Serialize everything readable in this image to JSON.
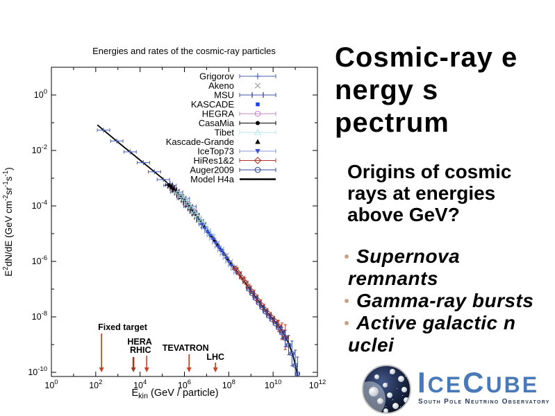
{
  "slide": {
    "title_lines": [
      "Cosmic-ray e",
      "nergy s",
      "pectrum"
    ],
    "question_lines": [
      "Origins of cosmic",
      "rays at energies",
      "above GeV?"
    ],
    "bullets": [
      {
        "lines": [
          "Supernova",
          "remnants"
        ]
      },
      {
        "lines": [
          "Gamma-ray bursts"
        ]
      },
      {
        "lines": [
          "Active galactic n",
          "uclei"
        ]
      }
    ],
    "bullet_dot_color": "#cba184"
  },
  "logo": {
    "part1": "I",
    "part2": "CE",
    "part3": "C",
    "part4": "UBE",
    "subtitle": "South Pole Neutrino Observatory",
    "name_color": "#4a79b8",
    "subtitle_color": "#2a3a5c"
  },
  "chart_data": {
    "type": "scatter",
    "title": "Energies and rates of the cosmic-ray particles",
    "xlabel": "E_kin (GeV / particle)",
    "ylabel": "E^2 dN/dE (GeV cm^-2 sr^-1 s^-1)",
    "xlabel_parts": [
      {
        "t": "E"
      },
      {
        "t": "kin",
        "sub": true
      },
      {
        "t": "  (GeV / particle)"
      }
    ],
    "ylabel_parts": [
      {
        "t": "E"
      },
      {
        "t": "2",
        "sup": true
      },
      {
        "t": "dN/dE  (GeV cm"
      },
      {
        "t": "-2",
        "sup": true
      },
      {
        "t": "sr"
      },
      {
        "t": "-1",
        "sup": true
      },
      {
        "t": "s"
      },
      {
        "t": "-1",
        "sup": true
      },
      {
        "t": ")"
      }
    ],
    "x_axis": {
      "scale": "log10",
      "min_exp": 0,
      "max_exp": 12,
      "labeled_exps": [
        0,
        2,
        4,
        6,
        8,
        10,
        12
      ]
    },
    "y_axis": {
      "scale": "log10",
      "top_exp": 1,
      "min_exp": -10.15,
      "labeled_exps": [
        0,
        -2,
        -4,
        -6,
        -8,
        -10
      ]
    },
    "model_line": {
      "name": "Model H4a",
      "color": "#000000",
      "legend": "line",
      "points": [
        [
          2.07,
          -1.08
        ],
        [
          3,
          -1.7
        ],
        [
          4,
          -2.35
        ],
        [
          5,
          -3
        ],
        [
          5.6,
          -3.45
        ],
        [
          6,
          -3.8
        ],
        [
          6.4,
          -4.2
        ],
        [
          6.8,
          -4.62
        ],
        [
          7.2,
          -5.05
        ],
        [
          7.6,
          -5.5
        ],
        [
          8,
          -5.95
        ],
        [
          8.5,
          -6.5
        ],
        [
          9,
          -7.05
        ],
        [
          9.5,
          -7.6
        ],
        [
          9.8,
          -7.9
        ],
        [
          10.1,
          -8.18
        ],
        [
          10.4,
          -8.5
        ],
        [
          10.7,
          -8.95
        ],
        [
          10.9,
          -9.4
        ],
        [
          11.05,
          -9.9
        ],
        [
          11.15,
          -10.3
        ]
      ]
    },
    "series": [
      {
        "name": "Grigorov",
        "color": "#4a5fb0",
        "marker": "plus",
        "legend": "errbar",
        "xerr": 0.28,
        "points": [
          [
            2.35,
            -1.27
          ],
          [
            2.95,
            -1.66
          ],
          [
            3.55,
            -2.05
          ],
          [
            4.15,
            -2.44
          ],
          [
            4.65,
            -2.77
          ],
          [
            5.05,
            -3.05
          ],
          [
            5.35,
            -3.26
          ],
          [
            5.65,
            -3.5
          ],
          [
            5.95,
            -3.73
          ],
          [
            6.25,
            -4.02
          ]
        ]
      },
      {
        "name": "Akeno",
        "color": "#9a9a9a",
        "marker": "x",
        "legend": "marker",
        "xerr": 0,
        "points": [
          [
            6.3,
            -4.05
          ],
          [
            6.5,
            -4.26
          ],
          [
            6.7,
            -4.47
          ],
          [
            6.9,
            -4.68
          ],
          [
            7.1,
            -4.89
          ],
          [
            7.3,
            -5.11
          ],
          [
            7.5,
            -5.34
          ],
          [
            7.7,
            -5.56
          ],
          [
            7.9,
            -5.78
          ],
          [
            8.1,
            -6.0
          ],
          [
            8.3,
            -6.21
          ],
          [
            8.5,
            -6.43
          ],
          [
            8.7,
            -6.65
          ],
          [
            8.9,
            -6.87
          ],
          [
            9.1,
            -7.09
          ]
        ]
      },
      {
        "name": "MSU",
        "color": "#3f51a8",
        "marker": "vbar",
        "legend": "errbar",
        "xerr": 0.12,
        "points": [
          [
            5.35,
            -3.2
          ],
          [
            5.5,
            -3.33
          ],
          [
            5.65,
            -3.45
          ],
          [
            5.8,
            -3.58
          ],
          [
            5.95,
            -3.69
          ],
          [
            6.1,
            -3.86
          ],
          [
            6.25,
            -3.99
          ],
          [
            6.4,
            -4.17
          ]
        ]
      },
      {
        "name": "KASCADE",
        "color": "#2040e8",
        "marker": "square",
        "legend": "marker",
        "xerr": 0,
        "points": [
          [
            5.9,
            -3.72
          ],
          [
            6.0,
            -3.81
          ],
          [
            6.1,
            -3.91
          ],
          [
            6.2,
            -4.01
          ],
          [
            6.3,
            -4.11
          ],
          [
            6.4,
            -4.21
          ],
          [
            6.5,
            -4.32
          ],
          [
            6.6,
            -4.42
          ],
          [
            6.7,
            -4.53
          ],
          [
            6.8,
            -4.63
          ],
          [
            6.9,
            -4.74
          ],
          [
            7.0,
            -4.85
          ],
          [
            7.1,
            -4.95
          ],
          [
            7.2,
            -5.06
          ],
          [
            7.3,
            -5.17
          ],
          [
            7.4,
            -5.29
          ],
          [
            7.5,
            -5.4
          ],
          [
            7.6,
            -5.51
          ],
          [
            7.7,
            -5.62
          ]
        ]
      },
      {
        "name": "HEGRA",
        "color": "#c488c4",
        "marker": "circle-open",
        "legend": "errbar",
        "xerr": 0.18,
        "points": [
          [
            5.45,
            -3.33
          ],
          [
            5.6,
            -3.44
          ],
          [
            5.75,
            -3.57
          ],
          [
            5.9,
            -3.7
          ],
          [
            6.05,
            -3.85
          ],
          [
            6.2,
            -3.99
          ],
          [
            6.35,
            -4.14
          ],
          [
            6.5,
            -4.3
          ]
        ]
      },
      {
        "name": "CasaMia",
        "color": "#000000",
        "marker": "circle-filled",
        "legend": "errbar",
        "xerr": 0.15,
        "points": [
          [
            5.3,
            -3.24
          ],
          [
            5.4,
            -3.31
          ],
          [
            5.5,
            -3.39
          ],
          [
            5.6,
            -3.47
          ],
          [
            5.7,
            -3.55
          ],
          [
            5.8,
            -3.64
          ],
          [
            5.9,
            -3.73
          ],
          [
            6.0,
            -3.82
          ],
          [
            6.1,
            -3.92
          ],
          [
            6.2,
            -4.02
          ],
          [
            6.3,
            -4.12
          ],
          [
            6.4,
            -4.22
          ],
          [
            6.5,
            -4.32
          ],
          [
            6.6,
            -4.43
          ],
          [
            6.7,
            -4.54
          ],
          [
            6.8,
            -4.65
          ],
          [
            6.9,
            -4.75
          ]
        ]
      },
      {
        "name": "Tibet",
        "color": "#b8e8f2",
        "marker": "tri-open",
        "legend": "errbar",
        "xerr": 0.15,
        "points": [
          [
            5.7,
            -3.5
          ],
          [
            5.85,
            -3.62
          ],
          [
            6.0,
            -3.75
          ],
          [
            6.15,
            -3.89
          ],
          [
            6.3,
            -4.04
          ],
          [
            6.45,
            -4.22
          ],
          [
            6.6,
            -4.37
          ],
          [
            6.75,
            -4.53
          ],
          [
            6.9,
            -4.7
          ],
          [
            7.05,
            -4.86
          ],
          [
            7.2,
            -5.02
          ]
        ]
      },
      {
        "name": "Kascade-Grande",
        "color": "#000000",
        "marker": "tri-filled",
        "legend": "marker",
        "xerr": 0,
        "points": [
          [
            6.9,
            -4.75
          ],
          [
            7.05,
            -4.91
          ],
          [
            7.2,
            -5.07
          ],
          [
            7.35,
            -5.23
          ],
          [
            7.5,
            -5.4
          ],
          [
            7.65,
            -5.57
          ],
          [
            7.8,
            -5.73
          ],
          [
            7.95,
            -5.9
          ],
          [
            8.1,
            -6.07
          ]
        ]
      },
      {
        "name": "IceTop73",
        "color": "#3c55cc",
        "err_color": "#8a97d8",
        "marker": "tri-down",
        "legend": "errbar",
        "xerr": 0.14,
        "points": [
          [
            6.8,
            -4.68
          ],
          [
            6.92,
            -4.81
          ],
          [
            7.04,
            -4.94
          ],
          [
            7.16,
            -5.07
          ],
          [
            7.28,
            -5.2
          ],
          [
            7.4,
            -5.34
          ],
          [
            7.52,
            -5.48
          ],
          [
            7.64,
            -5.61
          ],
          [
            7.76,
            -5.75
          ],
          [
            7.88,
            -5.89
          ],
          [
            8.0,
            -6.02
          ],
          [
            8.12,
            -6.15
          ],
          [
            8.24,
            -6.28
          ],
          [
            8.36,
            -6.42
          ]
        ]
      },
      {
        "name": "HiRes1&2",
        "color": "#b13228",
        "marker": "diamond-open",
        "legend": "errbar",
        "xerr": 0.12,
        "points": [
          [
            8.3,
            -6.26
          ],
          [
            8.45,
            -6.42
          ],
          [
            8.6,
            -6.59
          ],
          [
            8.75,
            -6.75
          ],
          [
            8.9,
            -6.92
          ],
          [
            9.05,
            -7.08
          ],
          [
            9.2,
            -7.25
          ],
          [
            9.35,
            -7.42
          ],
          [
            9.5,
            -7.58
          ],
          [
            9.65,
            -7.74
          ],
          [
            9.8,
            -7.88
          ],
          [
            9.95,
            -8.02
          ],
          [
            10.1,
            -8.16
          ],
          [
            10.25,
            -8.33,
            0.2
          ],
          [
            10.4,
            -8.52,
            0.3
          ],
          [
            10.55,
            -8.73,
            0.45
          ]
        ]
      },
      {
        "name": "Auger2009",
        "color": "#32479e",
        "marker": "circle-open",
        "legend": "errbar",
        "xerr": 0.1,
        "points": [
          [
            8.9,
            -7.0
          ],
          [
            9.05,
            -7.16
          ],
          [
            9.2,
            -7.33
          ],
          [
            9.35,
            -7.5
          ],
          [
            9.5,
            -7.66
          ],
          [
            9.65,
            -7.82
          ],
          [
            9.8,
            -7.97
          ],
          [
            9.95,
            -8.1
          ],
          [
            10.1,
            -8.25
          ],
          [
            10.25,
            -8.4
          ],
          [
            10.4,
            -8.58,
            0.2
          ],
          [
            10.55,
            -8.78,
            0.3
          ],
          [
            10.7,
            -9.02,
            0.35
          ],
          [
            10.85,
            -9.32,
            0.45
          ],
          [
            11.0,
            -9.75,
            0.55
          ],
          [
            11.1,
            -10.05,
            0.6
          ]
        ]
      }
    ],
    "accelerator_arrows": [
      {
        "label": "Fixed target",
        "log_e": 2.26,
        "color": "#cc4125"
      },
      {
        "label": "HERA",
        "log_e": 3.7,
        "color": "#a03a22"
      },
      {
        "label": "RHIC",
        "log_e": 4.3,
        "color": "#cc4125"
      },
      {
        "label": "TEVATRON",
        "log_e": 6.21,
        "color": "#cc4125"
      },
      {
        "label": "LHC",
        "log_e": 7.4,
        "color": "#cc4125"
      }
    ]
  }
}
